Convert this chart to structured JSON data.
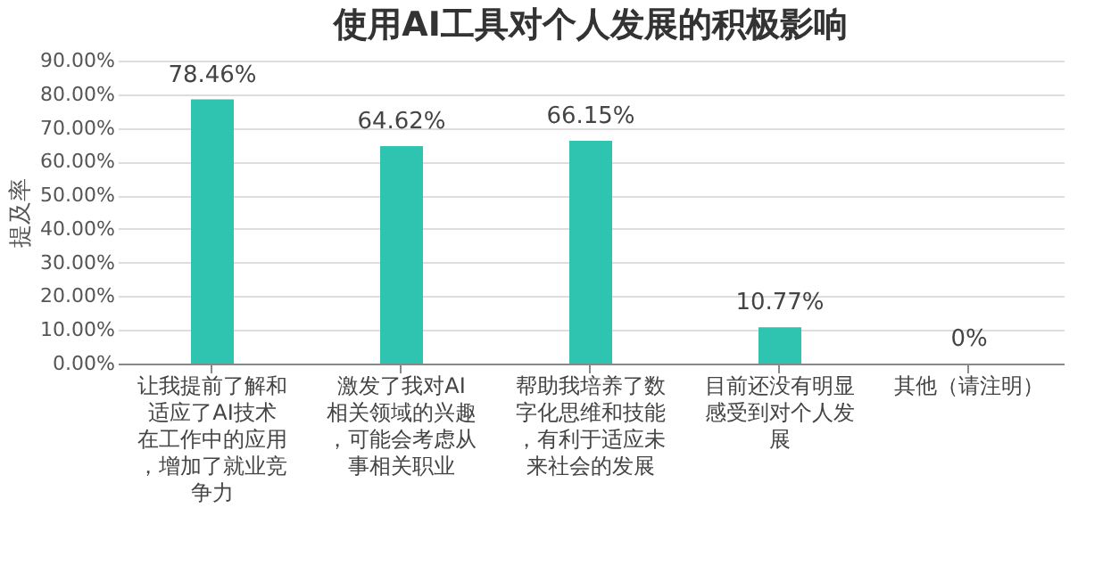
{
  "chart_data": {
    "type": "bar",
    "title": "使用AI工具对个人发展的积极影响",
    "ylabel": "提及率",
    "categories": [
      "让我提前了解和适应了AI技术在工作中的应用，增加了就业竞争力",
      "激发了我对AI相关领域的兴趣，可能会考虑从事相关职业",
      "帮助我培养了数字化思维和技能，有利于适应未来社会的发展",
      "目前还没有明显感受到对个人发展",
      "其他（请注明）"
    ],
    "values": [
      78.46,
      64.62,
      66.15,
      10.77,
      0
    ],
    "value_labels": [
      "78.46%",
      "64.62%",
      "66.15%",
      "10.77%",
      "0%"
    ],
    "color": "#2ec4b0",
    "ylim": [
      0,
      90
    ],
    "yticks": [
      {
        "value": 0,
        "label": "0.00%"
      },
      {
        "value": 10,
        "label": "10.00%"
      },
      {
        "value": 20,
        "label": "20.00%"
      },
      {
        "value": 30,
        "label": "30.00%"
      },
      {
        "value": 40,
        "label": "40.00%"
      },
      {
        "value": 50,
        "label": "50.00%"
      },
      {
        "value": 60,
        "label": "60.00%"
      },
      {
        "value": 70,
        "label": "70.00%"
      },
      {
        "value": 80,
        "label": "80.00%"
      },
      {
        "value": 90,
        "label": "90.00%"
      }
    ],
    "grid": "y"
  }
}
